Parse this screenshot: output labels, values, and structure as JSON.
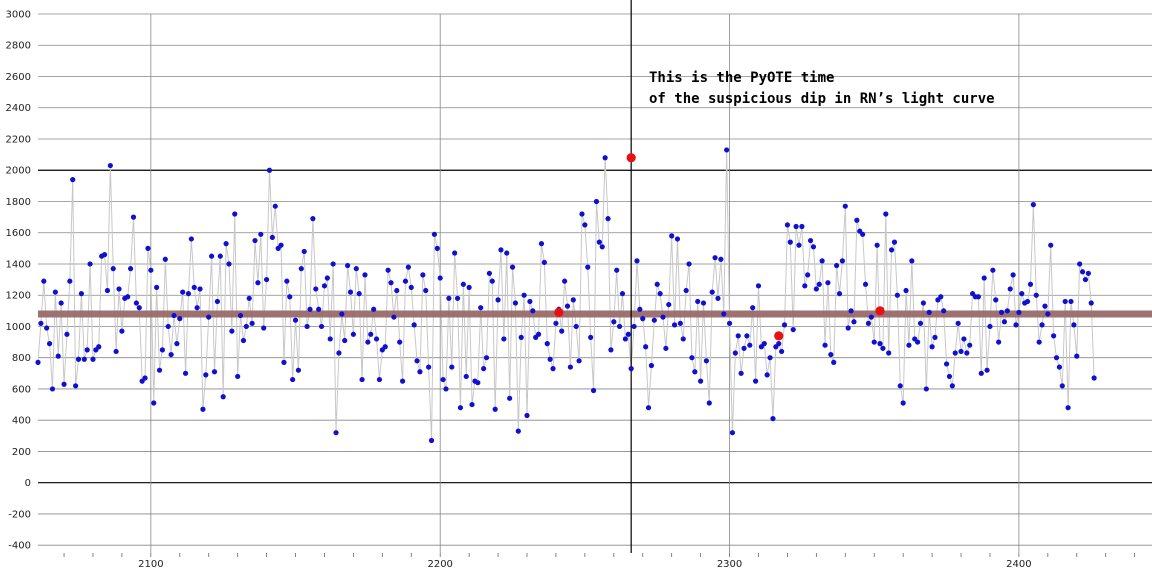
{
  "chart_data": {
    "type": "scatter",
    "title": "",
    "xlabel": "",
    "ylabel": "",
    "xlim": [
      2061,
      2446
    ],
    "ylim": [
      -450,
      3000
    ],
    "x_ticks": [
      2100,
      2200,
      2300,
      2400
    ],
    "y_ticks": [
      -400,
      -200,
      0,
      200,
      400,
      600,
      800,
      1000,
      1200,
      1400,
      1600,
      1800,
      2000,
      2200,
      2400,
      2600,
      2800,
      3000
    ],
    "grid": true,
    "baseline_level": 1080,
    "vertical_marker_x": 2266,
    "annotation": {
      "line1": "This is the PyOTE time",
      "line2": "of the suspicious dip in RN’s light curve"
    },
    "colors": {
      "points": "#1010d0",
      "highlight_points": "#e81010",
      "connector": "#c8c8c8",
      "baseline": "#9a6b6b",
      "grid": "#888888",
      "marker_line": "#000000"
    },
    "series": [
      {
        "values": [
          770,
          1020,
          1290,
          990,
          890,
          600,
          1220,
          810,
          1150,
          630,
          950,
          1290,
          1940,
          620,
          790,
          1210,
          790,
          850,
          1400,
          790,
          850,
          870,
          1450,
          1460,
          1230,
          2030,
          1370,
          840,
          1240,
          970,
          1180,
          1190,
          1370,
          1700,
          1150,
          1120,
          650,
          670,
          1500,
          1360,
          510,
          1250,
          720,
          850,
          1430,
          1000,
          820,
          1070,
          890,
          1050,
          1220,
          700,
          1210,
          1560,
          1250,
          1120,
          1240,
          470,
          690,
          1060,
          1450,
          710,
          1160,
          1450,
          550,
          1530,
          1400,
          970,
          1720,
          680,
          1070,
          910,
          1000,
          1180,
          1020,
          1550,
          1280,
          1590,
          990,
          1300,
          2000,
          1570,
          1770,
          1500,
          1520,
          770,
          1290,
          1190,
          660,
          1040,
          720,
          1370,
          1480,
          1000,
          1110,
          1690,
          1240,
          1110,
          1000,
          1260,
          1310,
          920,
          1400,
          320,
          830,
          1080,
          910,
          1390,
          1220,
          950,
          1370,
          1210,
          660,
          1330,
          900,
          950,
          1110,
          920,
          660,
          850,
          870,
          1360,
          1280,
          1060,
          1230,
          900,
          650,
          1290,
          1380,
          1250,
          1010,
          780,
          710,
          1330,
          1230,
          740,
          270,
          1590,
          1500,
          1310,
          660,
          600,
          1180,
          740,
          1470,
          1180,
          480,
          1270,
          680,
          1250,
          500,
          650,
          640,
          1120,
          730,
          800,
          1340,
          1290,
          470,
          1170,
          1490,
          920,
          1470,
          540,
          1380,
          1150,
          330,
          930,
          1200,
          430,
          1160,
          1100,
          930,
          950,
          1530,
          1410,
          890,
          790,
          730,
          1020,
          1110,
          970,
          1290,
          1130,
          740,
          1170,
          1000,
          780,
          1720,
          1650,
          1380,
          930,
          590,
          1800,
          1540,
          1510,
          2080,
          1690,
          850,
          1030,
          1360,
          1000,
          1210,
          920,
          950,
          730,
          1000,
          1420,
          1110,
          1050,
          870,
          480,
          750,
          1040,
          1270,
          1210,
          1060,
          860,
          1140,
          1580,
          1010,
          1560,
          1020,
          920,
          1230,
          1400,
          800,
          710,
          1160,
          650,
          1150,
          780,
          510,
          1220,
          1440,
          1180,
          1430,
          1080,
          2130,
          1020,
          320,
          830,
          940,
          700,
          860,
          940,
          880,
          1120,
          650,
          1260,
          870,
          890,
          690,
          800,
          410,
          870,
          890,
          840,
          1010,
          1650,
          1540,
          980,
          1640,
          1520,
          1640,
          1260,
          1330,
          1550,
          1510,
          1240,
          1270,
          1420,
          880,
          1280,
          820,
          770,
          1390,
          1210,
          1420,
          1770,
          990,
          1100,
          1030,
          1680,
          1610,
          1590,
          1270,
          1020,
          1060,
          900,
          1520,
          890,
          860,
          1720,
          830,
          1490,
          1540,
          1200,
          620,
          510,
          1230,
          880,
          1420,
          920,
          900,
          1020,
          1150,
          600,
          1090,
          870,
          930,
          1170,
          1190,
          1100,
          760,
          680,
          620,
          830,
          1020,
          840,
          920,
          830,
          880,
          1210,
          1190,
          1190,
          700,
          1310,
          720,
          1000,
          1360,
          1170,
          900,
          1090,
          1030,
          1100,
          1240,
          1330,
          1010,
          1090,
          1210,
          1150,
          1160,
          1270,
          1780,
          1200,
          900,
          1010,
          1130,
          1080,
          1520,
          940,
          800,
          740,
          620,
          1160,
          480,
          1160,
          1010,
          810,
          1400,
          1350,
          1300,
          1340,
          1150,
          670
        ]
      }
    ],
    "highlights": [
      {
        "x": 2241,
        "y": 1090
      },
      {
        "x": 2266,
        "y": 2080
      },
      {
        "x": 2317,
        "y": 940
      },
      {
        "x": 2352,
        "y": 1100
      }
    ]
  }
}
